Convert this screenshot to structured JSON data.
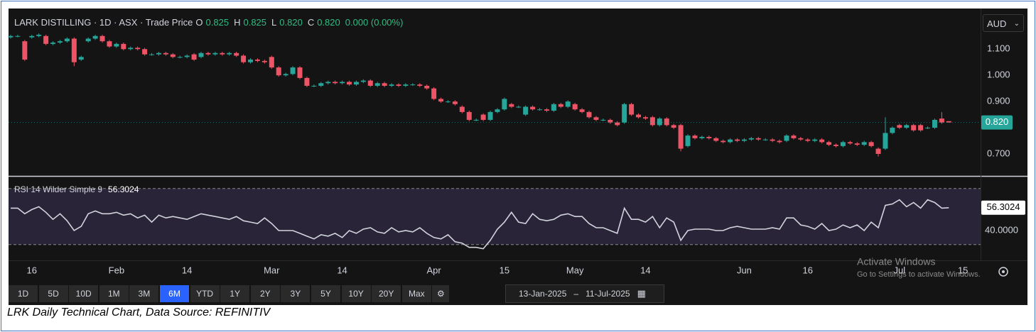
{
  "chart_data": [
    {
      "type": "candlestick",
      "title": "LARK DISTILLING · 1D · ASX · Trade Price",
      "legend": {
        "open_key": "O",
        "open": "0.825",
        "high_key": "H",
        "high": "0.825",
        "low_key": "L",
        "low": "0.820",
        "close_key": "C",
        "close": "0.820",
        "change": "0.000 (0.00%)"
      },
      "currency": "AUD",
      "open": [
        1.145,
        1.15,
        1.13,
        1.145,
        1.15,
        1.15,
        1.12,
        1.125,
        1.13,
        1.14,
        1.06,
        1.13,
        1.14,
        1.15,
        1.13,
        1.11,
        1.12,
        1.1,
        1.105,
        1.1,
        1.08,
        1.08,
        1.085,
        1.08,
        1.07,
        1.07,
        1.08,
        1.07,
        1.085,
        1.08,
        1.085,
        1.08,
        1.085,
        1.075,
        1.05,
        1.06,
        1.055,
        1.07,
        1.03,
        1.0,
        1.005,
        1.03,
        0.99,
        0.96,
        0.96,
        0.97,
        0.975,
        0.97,
        0.975,
        0.965,
        0.975,
        0.98,
        0.96,
        0.97,
        0.96,
        0.965,
        0.96,
        0.965,
        0.965,
        0.96,
        0.95,
        0.91,
        0.9,
        0.9,
        0.88,
        0.86,
        0.83,
        0.85,
        0.83,
        0.86,
        0.87,
        0.89,
        0.88,
        0.85,
        0.88,
        0.87,
        0.87,
        0.865,
        0.89,
        0.88,
        0.89,
        0.87,
        0.86,
        0.84,
        0.83,
        0.83,
        0.82,
        0.82,
        0.89,
        0.85,
        0.84,
        0.84,
        0.81,
        0.835,
        0.81,
        0.81,
        0.73,
        0.77,
        0.76,
        0.765,
        0.76,
        0.75,
        0.745,
        0.755,
        0.75,
        0.755,
        0.76,
        0.755,
        0.755,
        0.75,
        0.75,
        0.77,
        0.76,
        0.755,
        0.75,
        0.755,
        0.745,
        0.735,
        0.73,
        0.745,
        0.74,
        0.735,
        0.745,
        0.72,
        0.72,
        0.78,
        0.81,
        0.8,
        0.81,
        0.81,
        0.8,
        0.8,
        0.835,
        0.825
      ],
      "high": [
        1.155,
        1.155,
        1.135,
        1.155,
        1.16,
        1.155,
        1.13,
        1.135,
        1.145,
        1.145,
        1.075,
        1.145,
        1.155,
        1.155,
        1.135,
        1.125,
        1.125,
        1.11,
        1.11,
        1.105,
        1.085,
        1.09,
        1.09,
        1.085,
        1.075,
        1.08,
        1.085,
        1.09,
        1.09,
        1.09,
        1.09,
        1.09,
        1.09,
        1.08,
        1.065,
        1.065,
        1.06,
        1.075,
        1.035,
        1.01,
        1.035,
        1.035,
        0.995,
        0.965,
        0.975,
        0.98,
        0.98,
        0.98,
        0.98,
        0.98,
        0.985,
        0.985,
        0.975,
        0.975,
        0.97,
        0.97,
        0.97,
        0.97,
        0.97,
        0.965,
        0.955,
        0.915,
        0.905,
        0.905,
        0.885,
        0.865,
        0.835,
        0.855,
        0.865,
        0.875,
        0.915,
        0.895,
        0.885,
        0.885,
        0.885,
        0.875,
        0.875,
        0.895,
        0.895,
        0.905,
        0.895,
        0.875,
        0.865,
        0.845,
        0.835,
        0.835,
        0.825,
        0.895,
        0.895,
        0.855,
        0.845,
        0.845,
        0.84,
        0.84,
        0.815,
        0.815,
        0.775,
        0.775,
        0.77,
        0.77,
        0.765,
        0.755,
        0.76,
        0.76,
        0.76,
        0.765,
        0.765,
        0.76,
        0.76,
        0.755,
        0.775,
        0.775,
        0.765,
        0.76,
        0.76,
        0.76,
        0.75,
        0.74,
        0.75,
        0.75,
        0.745,
        0.75,
        0.75,
        0.725,
        0.84,
        0.805,
        0.815,
        0.815,
        0.815,
        0.815,
        0.805,
        0.835,
        0.86,
        0.825
      ],
      "low": [
        1.14,
        1.145,
        1.055,
        1.14,
        1.145,
        1.115,
        1.115,
        1.12,
        1.125,
        1.035,
        1.055,
        1.125,
        1.135,
        1.125,
        1.105,
        1.105,
        1.095,
        1.095,
        1.095,
        1.075,
        1.075,
        1.075,
        1.075,
        1.065,
        1.065,
        1.065,
        1.055,
        1.065,
        1.075,
        1.075,
        1.075,
        1.075,
        1.07,
        1.045,
        1.045,
        1.05,
        1.045,
        1.025,
        0.995,
        0.995,
        1.0,
        0.985,
        0.955,
        0.955,
        0.955,
        0.965,
        0.965,
        0.965,
        0.96,
        0.96,
        0.97,
        0.955,
        0.955,
        0.955,
        0.955,
        0.955,
        0.955,
        0.96,
        0.955,
        0.945,
        0.905,
        0.895,
        0.895,
        0.885,
        0.855,
        0.825,
        0.825,
        0.825,
        0.825,
        0.855,
        0.865,
        0.875,
        0.875,
        0.845,
        0.865,
        0.865,
        0.86,
        0.86,
        0.875,
        0.875,
        0.865,
        0.855,
        0.835,
        0.825,
        0.825,
        0.815,
        0.805,
        0.815,
        0.845,
        0.835,
        0.83,
        0.805,
        0.805,
        0.805,
        0.795,
        0.71,
        0.725,
        0.755,
        0.755,
        0.755,
        0.745,
        0.74,
        0.74,
        0.745,
        0.745,
        0.75,
        0.75,
        0.75,
        0.745,
        0.74,
        0.745,
        0.755,
        0.75,
        0.745,
        0.745,
        0.74,
        0.73,
        0.725,
        0.725,
        0.735,
        0.73,
        0.73,
        0.725,
        0.69,
        0.715,
        0.775,
        0.795,
        0.795,
        0.785,
        0.785,
        0.795,
        0.795,
        0.815,
        0.82
      ],
      "close": [
        1.15,
        1.15,
        1.06,
        1.15,
        1.155,
        1.12,
        1.125,
        1.13,
        1.14,
        1.05,
        1.07,
        1.14,
        1.15,
        1.13,
        1.11,
        1.12,
        1.1,
        1.105,
        1.1,
        1.08,
        1.08,
        1.085,
        1.08,
        1.07,
        1.07,
        1.075,
        1.06,
        1.085,
        1.08,
        1.085,
        1.08,
        1.085,
        1.075,
        1.05,
        1.06,
        1.055,
        1.05,
        1.03,
        1.0,
        1.005,
        1.03,
        0.99,
        0.96,
        0.96,
        0.97,
        0.975,
        0.97,
        0.975,
        0.965,
        0.975,
        0.98,
        0.96,
        0.97,
        0.96,
        0.965,
        0.96,
        0.965,
        0.965,
        0.96,
        0.95,
        0.91,
        0.9,
        0.9,
        0.89,
        0.86,
        0.83,
        0.83,
        0.83,
        0.86,
        0.87,
        0.91,
        0.88,
        0.88,
        0.88,
        0.87,
        0.87,
        0.865,
        0.89,
        0.88,
        0.9,
        0.87,
        0.86,
        0.84,
        0.83,
        0.83,
        0.82,
        0.81,
        0.89,
        0.85,
        0.84,
        0.835,
        0.81,
        0.835,
        0.81,
        0.8,
        0.72,
        0.77,
        0.76,
        0.765,
        0.76,
        0.75,
        0.745,
        0.755,
        0.75,
        0.755,
        0.76,
        0.755,
        0.755,
        0.75,
        0.745,
        0.77,
        0.76,
        0.755,
        0.75,
        0.755,
        0.745,
        0.735,
        0.73,
        0.745,
        0.74,
        0.735,
        0.745,
        0.73,
        0.7,
        0.78,
        0.8,
        0.8,
        0.81,
        0.79,
        0.79,
        0.8,
        0.83,
        0.82,
        0.82
      ],
      "up_color": "#26a69a",
      "down_color": "#ef5366",
      "xlim": [
        -0.3,
        137.5
      ],
      "xticks": [
        {
          "value": 3,
          "label": "16"
        },
        {
          "value": 15,
          "label": "Feb"
        },
        {
          "value": 25,
          "label": "14"
        },
        {
          "value": 37,
          "label": "Mar"
        },
        {
          "value": 47,
          "label": "14"
        },
        {
          "value": 60,
          "label": "Apr"
        },
        {
          "value": 70,
          "label": "15"
        },
        {
          "value": 80,
          "label": "May"
        },
        {
          "value": 90,
          "label": "14"
        },
        {
          "value": 104,
          "label": "Jun"
        },
        {
          "value": 113,
          "label": "16"
        },
        {
          "value": 126,
          "label": "Jul"
        },
        {
          "value": 135,
          "label": "15"
        }
      ],
      "ylim": [
        0.616,
        1.255
      ],
      "yticks": [
        {
          "value": 0.7,
          "label": "0.700"
        },
        {
          "value": 0.9,
          "label": "0.900"
        },
        {
          "value": 1.0,
          "label": "1.000"
        },
        {
          "value": 1.1,
          "label": "1.100"
        }
      ],
      "last_price": {
        "value": 0.82,
        "label": "0.820"
      }
    },
    {
      "type": "line",
      "title": "RSI 14 Wilder Simple 9",
      "last_value_label": "56.3024",
      "values": [
        56,
        56,
        52,
        55,
        57,
        53,
        48,
        52,
        47,
        40,
        43,
        52,
        54,
        52,
        52,
        53,
        51,
        52,
        49,
        51,
        46,
        51,
        49,
        50,
        49,
        48,
        50,
        52,
        51,
        50,
        49,
        48,
        50,
        47,
        46,
        45,
        49,
        45,
        40,
        40,
        40,
        38,
        36,
        34,
        37,
        36,
        38,
        35,
        40,
        38,
        41,
        42,
        39,
        38,
        42,
        39,
        40,
        39,
        42,
        38,
        35,
        34,
        37,
        32,
        31,
        28,
        28,
        27,
        33,
        41,
        46,
        53,
        46,
        45,
        52,
        48,
        47,
        48,
        51,
        52,
        50,
        50,
        45,
        42,
        42,
        40,
        38,
        56,
        48,
        48,
        46,
        50,
        42,
        49,
        46,
        33,
        40,
        41,
        41,
        41,
        40,
        40,
        42,
        43,
        42,
        41,
        41,
        41,
        42,
        41,
        49,
        49,
        44,
        43,
        41,
        45,
        40,
        41,
        44,
        42,
        44,
        40,
        46,
        42,
        58,
        59,
        62,
        57,
        60,
        56,
        62,
        60,
        56,
        56.3024
      ],
      "color": "#d1d4dc",
      "ylim": [
        18.7,
        78
      ],
      "yticks": [
        {
          "value": 40,
          "label": "40.0000"
        }
      ],
      "bands": [
        30,
        70
      ],
      "band_color": "#2a2438"
    }
  ],
  "toolbar": {
    "ranges": [
      "1D",
      "5D",
      "10D",
      "1M",
      "3M",
      "6M",
      "YTD",
      "1Y",
      "2Y",
      "3Y",
      "5Y",
      "10Y",
      "20Y",
      "Max"
    ],
    "active": "6M",
    "start_date": "13-Jan-2025",
    "end_date": "11-Jul-2025"
  },
  "watermark": {
    "title": "Activate Windows",
    "subtitle": "Go to Settings to activate Windows."
  },
  "caption": "LRK Daily Technical Chart, Data Source: REFINITIV"
}
